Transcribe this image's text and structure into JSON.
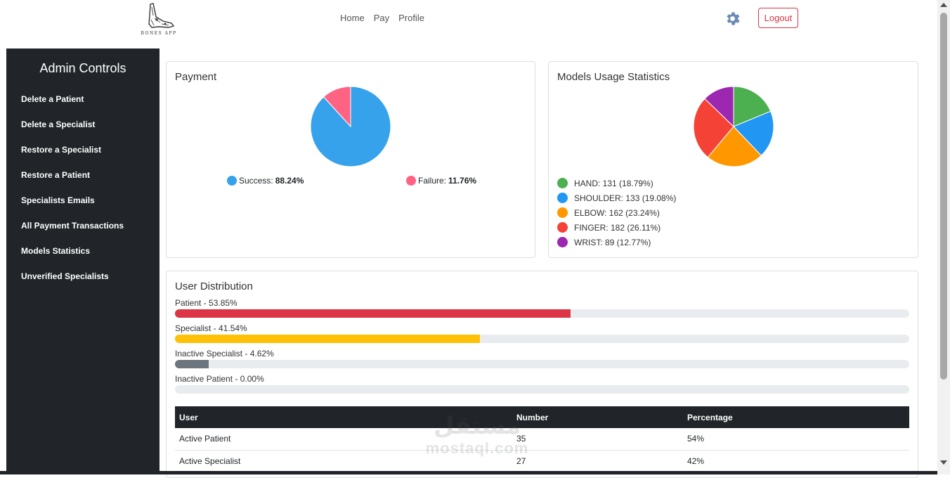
{
  "navbar": {
    "logo_text": "BONES APP",
    "links": [
      {
        "label": "Home"
      },
      {
        "label": "Pay"
      },
      {
        "label": "Profile"
      }
    ],
    "settings_icon": "gear-icon",
    "logout_label": "Logout",
    "colors": {
      "danger": "#dc3545",
      "gear": "#6b8bb5"
    }
  },
  "sidebar": {
    "title": "Admin Controls",
    "items": [
      {
        "label": "Delete a Patient"
      },
      {
        "label": "Delete a Specialist"
      },
      {
        "label": "Restore a Specialist"
      },
      {
        "label": "Restore a Patient"
      },
      {
        "label": "Specialists Emails"
      },
      {
        "label": "All Payment Transactions"
      },
      {
        "label": "Models Statistics"
      },
      {
        "label": "Unverified Specialists"
      }
    ]
  },
  "payment": {
    "title": "Payment",
    "legend": [
      {
        "name": "Success:",
        "value": "88.24%",
        "color": "#36a2eb"
      },
      {
        "name": "Failure:",
        "value": "11.76%",
        "color": "#ff6384"
      }
    ]
  },
  "models": {
    "title": "Models Usage Statistics",
    "legend": [
      {
        "text": "HAND: 131 (18.79%)",
        "color": "#4caf50"
      },
      {
        "text": "SHOULDER: 133 (19.08%)",
        "color": "#2196f3"
      },
      {
        "text": "ELBOW: 162 (23.24%)",
        "color": "#ff9800"
      },
      {
        "text": "FINGER: 182 (26.11%)",
        "color": "#f44336"
      },
      {
        "text": "WRIST: 89 (12.77%)",
        "color": "#9c27b0"
      }
    ]
  },
  "users": {
    "title": "User Distribution",
    "bars": [
      {
        "label": "Patient - 53.85%",
        "percent": 53.85,
        "color": "#dc3545"
      },
      {
        "label": "Specialist - 41.54%",
        "percent": 41.54,
        "color": "#ffc107"
      },
      {
        "label": "Inactive Specialist - 4.62%",
        "percent": 4.62,
        "color": "#6c757d"
      },
      {
        "label": "Inactive Patient - 0.00%",
        "percent": 0,
        "color": "#6c757d"
      }
    ],
    "table": {
      "headers": [
        "User",
        "Number",
        "Percentage"
      ],
      "rows": [
        [
          "Active Patient",
          "35",
          "54%"
        ],
        [
          "Active Specialist",
          "27",
          "42%"
        ]
      ]
    }
  },
  "chart_data": [
    {
      "type": "pie",
      "title": "Payment",
      "categories": [
        "Success",
        "Failure"
      ],
      "values": [
        88.24,
        11.76
      ],
      "colors": [
        "#36a2eb",
        "#ff6384"
      ]
    },
    {
      "type": "pie",
      "title": "Models Usage Statistics",
      "categories": [
        "HAND",
        "SHOULDER",
        "ELBOW",
        "FINGER",
        "WRIST"
      ],
      "values": [
        131,
        133,
        162,
        182,
        89
      ],
      "colors": [
        "#4caf50",
        "#2196f3",
        "#ff9800",
        "#f44336",
        "#9c27b0"
      ]
    }
  ],
  "watermark": {
    "arabic": "مستقل",
    "latin": "mostaql.com"
  }
}
